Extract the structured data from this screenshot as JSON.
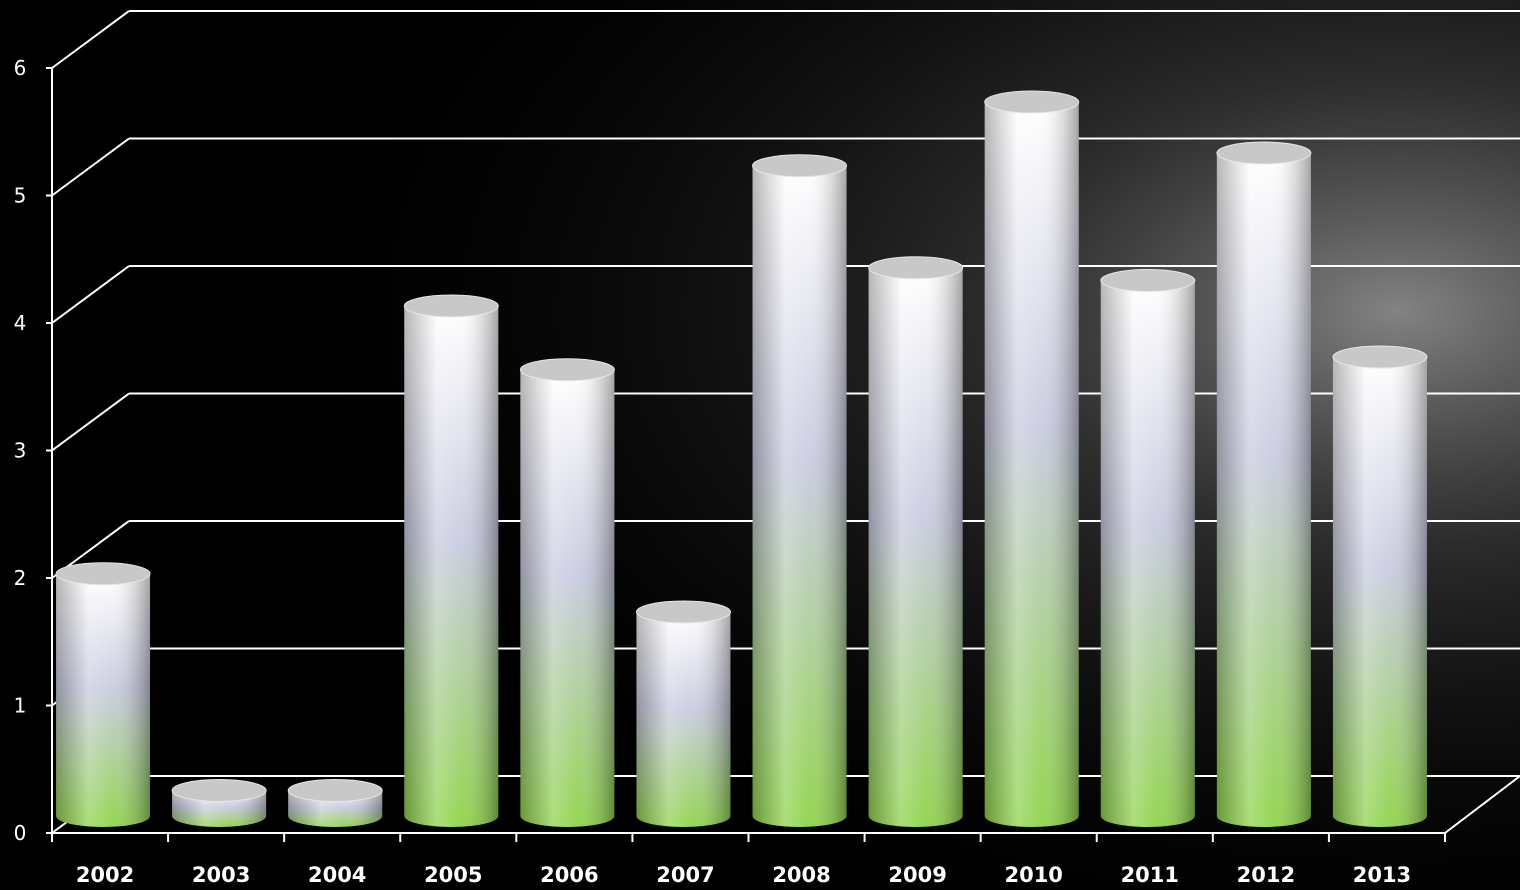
{
  "chart_data": {
    "type": "bar",
    "style": "3d-cylinder",
    "categories": [
      "2002",
      "2003",
      "2004",
      "2005",
      "2006",
      "2007",
      "2008",
      "2009",
      "2010",
      "2011",
      "2012",
      "2013"
    ],
    "values": [
      1.9,
      0.2,
      0.2,
      4.0,
      3.5,
      1.6,
      5.1,
      4.3,
      5.6,
      4.2,
      5.2,
      3.6
    ],
    "ylim": [
      0,
      6
    ],
    "y_ticks": [
      "0",
      "1",
      "2",
      "3",
      "4",
      "5",
      "6"
    ],
    "title": "",
    "xlabel": "",
    "ylabel": "",
    "grid": true,
    "colors": {
      "background": "#000000",
      "grid": "#ffffff",
      "bar_top": "#ffffff",
      "bar_middle": "#c9cbe0",
      "bar_bottom": "#8fd44a",
      "cap": "#c8c8c8"
    }
  }
}
